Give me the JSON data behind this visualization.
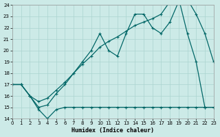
{
  "xlabel": "Humidex (Indice chaleur)",
  "xlim": [
    0,
    23
  ],
  "ylim": [
    14,
    24
  ],
  "yticks": [
    14,
    15,
    16,
    17,
    18,
    19,
    20,
    21,
    22,
    23,
    24
  ],
  "xticks": [
    0,
    1,
    2,
    3,
    4,
    5,
    6,
    7,
    8,
    9,
    10,
    11,
    12,
    13,
    14,
    15,
    16,
    17,
    18,
    19,
    20,
    21,
    22,
    23
  ],
  "bg_color": "#cceae7",
  "grid_color": "#aad4d0",
  "line_color": "#006666",
  "series1_x": [
    0,
    1,
    2,
    3,
    4,
    5,
    6,
    7,
    8,
    9,
    10,
    11,
    12,
    13,
    14,
    15,
    16,
    17,
    18,
    19,
    20,
    21,
    22,
    23
  ],
  "series1_y": [
    17,
    17,
    16,
    14.8,
    14,
    14.8,
    15,
    15,
    15,
    15,
    15,
    15,
    15,
    15,
    15,
    15,
    15,
    15,
    15,
    15,
    15,
    15,
    15,
    15
  ],
  "series2_x": [
    0,
    1,
    2,
    3,
    4,
    5,
    6,
    7,
    8,
    9,
    10,
    11,
    12,
    13,
    14,
    15,
    16,
    17,
    18,
    19,
    20,
    21,
    22,
    23
  ],
  "series2_y": [
    17,
    17,
    16,
    15,
    15.2,
    16.2,
    17,
    18,
    19,
    20,
    21.5,
    20,
    19.5,
    21.5,
    23.2,
    23.2,
    22,
    21.5,
    22.5,
    24.3,
    24.5,
    23.2,
    21.5,
    19
  ],
  "series3_x": [
    0,
    1,
    2,
    3,
    4,
    5,
    6,
    7,
    8,
    9,
    10,
    11,
    12,
    13,
    14,
    15,
    16,
    17,
    18,
    19,
    20,
    21,
    22,
    23
  ],
  "series3_y": [
    17,
    17,
    16,
    15.5,
    15.8,
    16.5,
    17.2,
    18,
    18.8,
    19.5,
    20.3,
    20.8,
    21.2,
    21.7,
    22.2,
    22.5,
    22.8,
    23.2,
    24.3,
    24.6,
    21.5,
    19,
    15,
    15
  ]
}
